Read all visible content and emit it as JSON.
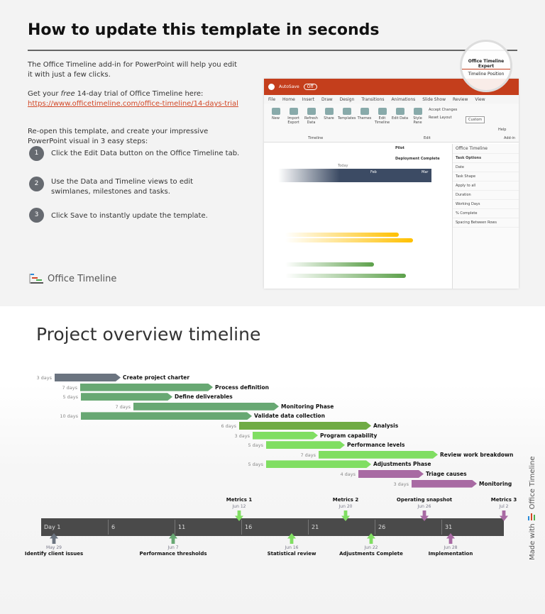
{
  "header": {
    "title": "How to update this template in seconds"
  },
  "intro": {
    "p1": "The Office Timeline add-in for PowerPoint will help you edit it with just a few clicks.",
    "p2_pre": "Get your ",
    "p2_em": "free",
    "p2_post": " 14-day trial of Office Timeline here:",
    "link": "https://www.officetimeline.com/office-timeline/14-days-trial",
    "p3": "Re-open this template, and create your impressive PowerPoint visual in 3 easy steps:"
  },
  "steps": [
    {
      "num": "1",
      "text": "Click the Edit Data button on the Office Timeline tab."
    },
    {
      "num": "2",
      "text": "Use the Data and Timeline views to edit swimlanes, milestones and tasks."
    },
    {
      "num": "3",
      "text": "Click Save to instantly update the template."
    }
  ],
  "logo": {
    "text": "Office Timeline"
  },
  "screenshot": {
    "autosave": "AutoSave",
    "toggle": "Off",
    "menu": [
      "File",
      "Home",
      "Insert",
      "Draw",
      "Design",
      "Transitions",
      "Animations",
      "Slide Show",
      "Review",
      "View"
    ],
    "ribbon": [
      "New",
      "Import Export",
      "Refresh Data",
      "Share",
      "Templates",
      "Themes",
      "Edit Timeline",
      "Edit Data",
      "Style Pane"
    ],
    "accept": "Accept Changes",
    "reset": "Reset Layout",
    "groups": [
      "Timeline",
      "Edit",
      "Add-in"
    ],
    "timeline_position": "Timeline Position",
    "custom": "Custom",
    "help": "Help",
    "lens_tab": "Office Timeline Expert",
    "pane_title": "Office Timeline",
    "pane_sub": "Task Options",
    "pane_items": [
      "Date",
      "Task Shape",
      "Apply to all",
      "Duration",
      "Working Days",
      "% Complete",
      "Spacing Between Rows"
    ],
    "milestones": [
      "Pilot",
      "Deployment Complete",
      "Today"
    ],
    "months": [
      "Feb",
      "Mar"
    ]
  },
  "project": {
    "title": "Project overview timeline",
    "tasks": [
      {
        "name": "Create project charter",
        "duration": "3 days",
        "color": "#6b7480"
      },
      {
        "name": "Process definition",
        "duration": "7 days",
        "color": "#68a873"
      },
      {
        "name": "Define deliverables",
        "duration": "5 days",
        "color": "#68a873"
      },
      {
        "name": "Monitoring Phase",
        "duration": "7 days",
        "color": "#68a873"
      },
      {
        "name": "Validate data collection",
        "duration": "10 days",
        "color": "#68a873"
      },
      {
        "name": "Analysis",
        "duration": "6 days",
        "color": "#70ab45"
      },
      {
        "name": "Program capability",
        "duration": "3 days",
        "color": "#80de62"
      },
      {
        "name": "Performance levels",
        "duration": "5 days",
        "color": "#80de62"
      },
      {
        "name": "Review work breakdown",
        "duration": "7 days",
        "color": "#80de62"
      },
      {
        "name": "Adjustments Phase",
        "duration": "5 days",
        "color": "#80de62"
      },
      {
        "name": "Triage causes",
        "duration": "4 days",
        "color": "#a86aa3"
      },
      {
        "name": "Monitoring",
        "duration": "3 days",
        "color": "#a86aa3"
      }
    ],
    "axis_ticks": [
      "Day 1",
      "6",
      "11",
      "16",
      "21",
      "26",
      "31"
    ],
    "milestones_above": [
      {
        "name": "Metrics 1",
        "date": "Jun 12",
        "color": "#80de62"
      },
      {
        "name": "Metrics 2",
        "date": "Jun 20",
        "color": "#80de62"
      },
      {
        "name": "Operating snapshot",
        "date": "Jun 26",
        "color": "#a86aa3"
      },
      {
        "name": "Metrics 3",
        "date": "Jul 2",
        "color": "#a86aa3"
      }
    ],
    "milestones_below": [
      {
        "name": "Identify client issues",
        "date": "May 29",
        "color": "#6b7480"
      },
      {
        "name": "Performance thresholds",
        "date": "Jun 7",
        "color": "#68a873"
      },
      {
        "name": "Statistical review",
        "date": "Jun 16",
        "color": "#80de62"
      },
      {
        "name": "Adjustments Complete",
        "date": "Jun 22",
        "color": "#80de62"
      },
      {
        "name": "Implementation",
        "date": "Jun 28",
        "color": "#a86aa3"
      }
    ],
    "made_with": "Made with",
    "made_brand": "Office Timeline"
  }
}
